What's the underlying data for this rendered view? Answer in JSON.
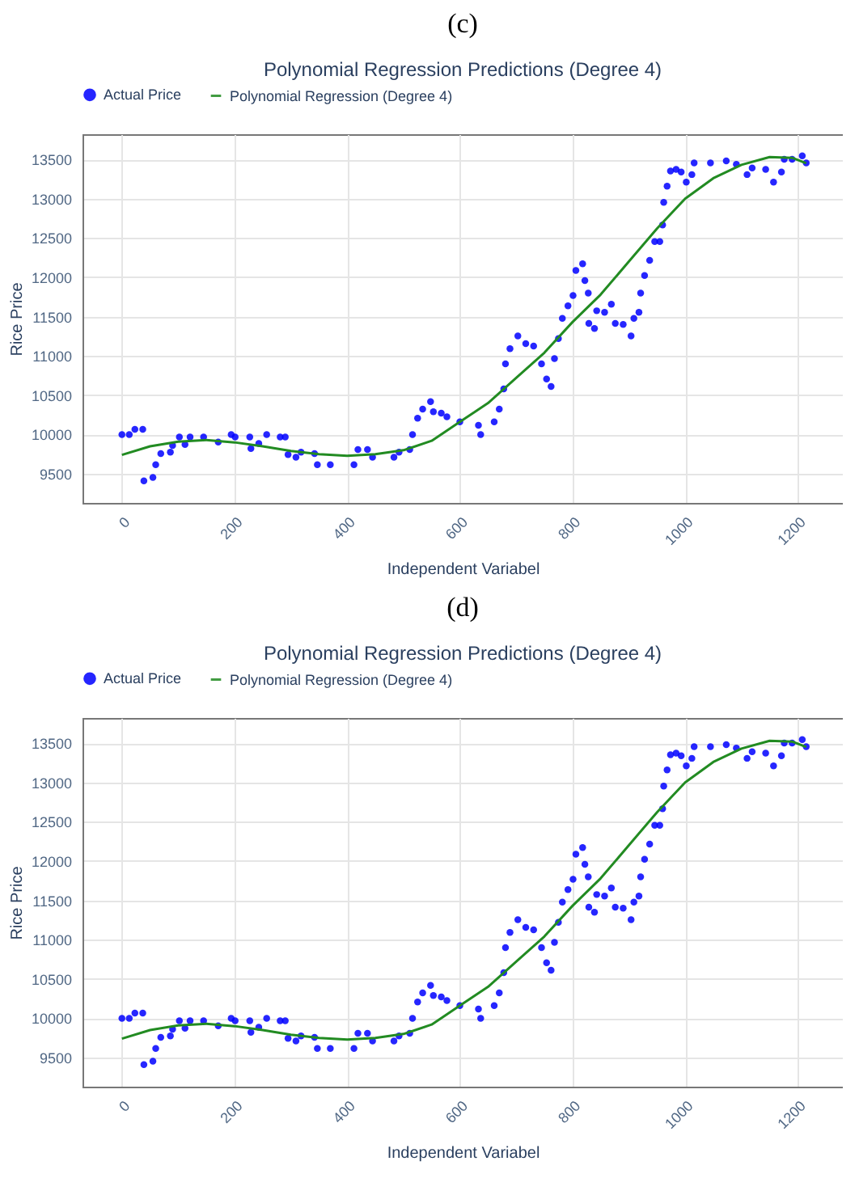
{
  "chart_data": [
    {
      "type": "scatter",
      "title": "Polynomial Regression Predictions (Degree 4)",
      "xlabel": "Independent Variabel",
      "ylabel": "Rice Price",
      "annotations": [
        "(c)"
      ],
      "xlim": [
        -70,
        1280
      ],
      "ylim": [
        9130,
        13820
      ],
      "xticks": [
        0,
        200,
        400,
        600,
        800,
        1000,
        1200
      ],
      "yticks": [
        9500,
        10000,
        10500,
        11000,
        11500,
        12000,
        12500,
        13000,
        13500
      ],
      "grid": true,
      "legend": "top",
      "series": [
        {
          "name": "Actual Price",
          "type": "scatter",
          "marker": "circle",
          "color": "#0000ff",
          "x": [
            0,
            13,
            23,
            37,
            39,
            55,
            60,
            69,
            86,
            90,
            102,
            112,
            121,
            145,
            171,
            194,
            201,
            227,
            229,
            243,
            257,
            281,
            290,
            295,
            309,
            318,
            342,
            347,
            370,
            412,
            419,
            436,
            445,
            483,
            492,
            511,
            516,
            525,
            534,
            548,
            553,
            567,
            577,
            600,
            633,
            637,
            661,
            670,
            678,
            681,
            689,
            703,
            717,
            731,
            745,
            754,
            762,
            768,
            775,
            782,
            792,
            801,
            806,
            818,
            822,
            828,
            829,
            839,
            843,
            857,
            869,
            876,
            890,
            904,
            909,
            918,
            921,
            928,
            937,
            946,
            955,
            960,
            962,
            968,
            974,
            984,
            993,
            1002,
            1012,
            1016,
            1045,
            1073,
            1091,
            1110,
            1119,
            1143,
            1157,
            1171,
            1176,
            1190,
            1208,
            1215
          ],
          "values": [
            10000,
            10000,
            10066,
            10066,
            9410,
            9455,
            9616,
            9757,
            9776,
            9860,
            9969,
            9873,
            9969,
            9969,
            9905,
            10000,
            9969,
            9969,
            9821,
            9886,
            10000,
            9969,
            9969,
            9744,
            9712,
            9776,
            9757,
            9616,
            9616,
            9616,
            9808,
            9808,
            9712,
            9712,
            9776,
            9808,
            10000,
            10207,
            10322,
            10418,
            10290,
            10271,
            10226,
            10160,
            10117,
            10000,
            10160,
            10322,
            10579,
            10900,
            11093,
            11253,
            11157,
            11125,
            10900,
            10707,
            10611,
            10965,
            11221,
            11478,
            11638,
            11767,
            12088,
            12171,
            11959,
            11799,
            11414,
            11349,
            11574,
            11555,
            11657,
            11414,
            11400,
            11253,
            11478,
            11555,
            11799,
            12023,
            12216,
            12454,
            12454,
            12665,
            12954,
            13160,
            13352,
            13372,
            13340,
            13211,
            13307,
            13455,
            13455,
            13480,
            13436,
            13307,
            13390,
            13372,
            13211,
            13340,
            13500,
            13500,
            13545,
            13455
          ]
        },
        {
          "name": "Polynomial Regression (Degree 4)",
          "type": "line",
          "marker": "none",
          "color": "#228b22",
          "x": [
            0,
            50,
            100,
            150,
            200,
            250,
            300,
            350,
            400,
            450,
            500,
            550,
            600,
            650,
            700,
            750,
            800,
            850,
            900,
            950,
            1000,
            1050,
            1100,
            1150,
            1190,
            1215
          ],
          "values": [
            9740,
            9850,
            9910,
            9930,
            9900,
            9850,
            9790,
            9750,
            9730,
            9750,
            9800,
            9920,
            10160,
            10400,
            10720,
            11040,
            11430,
            11780,
            12200,
            12620,
            13000,
            13260,
            13430,
            13530,
            13520,
            13450
          ]
        }
      ]
    },
    {
      "type": "scatter",
      "title": "Polynomial Regression Predictions (Degree 4)",
      "xlabel": "Independent Variabel",
      "ylabel": "Rice Price",
      "annotations": [
        "(d)"
      ],
      "xlim": [
        -70,
        1280
      ],
      "ylim": [
        9130,
        13820
      ],
      "xticks": [
        0,
        200,
        400,
        600,
        800,
        1000,
        1200
      ],
      "yticks": [
        9500,
        10000,
        10500,
        11000,
        11500,
        12000,
        12500,
        13000,
        13500
      ],
      "grid": true,
      "legend": "top",
      "series": [
        {
          "name": "Actual Price",
          "type": "scatter",
          "marker": "circle",
          "color": "#0000ff",
          "x": [
            0,
            13,
            23,
            37,
            39,
            55,
            60,
            69,
            86,
            90,
            102,
            112,
            121,
            145,
            171,
            194,
            201,
            227,
            229,
            243,
            257,
            281,
            290,
            295,
            309,
            318,
            342,
            347,
            370,
            412,
            419,
            436,
            445,
            483,
            492,
            511,
            516,
            525,
            534,
            548,
            553,
            567,
            577,
            600,
            633,
            637,
            661,
            670,
            678,
            681,
            689,
            703,
            717,
            731,
            745,
            754,
            762,
            768,
            775,
            782,
            792,
            801,
            806,
            818,
            822,
            828,
            829,
            839,
            843,
            857,
            869,
            876,
            890,
            904,
            909,
            918,
            921,
            928,
            937,
            946,
            955,
            960,
            962,
            968,
            974,
            984,
            993,
            1002,
            1012,
            1016,
            1045,
            1073,
            1091,
            1110,
            1119,
            1143,
            1157,
            1171,
            1176,
            1190,
            1208,
            1215
          ],
          "values": [
            10000,
            10000,
            10066,
            10066,
            9410,
            9455,
            9616,
            9757,
            9776,
            9860,
            9969,
            9873,
            9969,
            9969,
            9905,
            10000,
            9969,
            9969,
            9821,
            9886,
            10000,
            9969,
            9969,
            9744,
            9712,
            9776,
            9757,
            9616,
            9616,
            9616,
            9808,
            9808,
            9712,
            9712,
            9776,
            9808,
            10000,
            10207,
            10322,
            10418,
            10290,
            10271,
            10226,
            10160,
            10117,
            10000,
            10160,
            10322,
            10579,
            10900,
            11093,
            11253,
            11157,
            11125,
            10900,
            10707,
            10611,
            10965,
            11221,
            11478,
            11638,
            11767,
            12088,
            12171,
            11959,
            11799,
            11414,
            11349,
            11574,
            11555,
            11657,
            11414,
            11400,
            11253,
            11478,
            11555,
            11799,
            12023,
            12216,
            12454,
            12454,
            12665,
            12954,
            13160,
            13352,
            13372,
            13340,
            13211,
            13307,
            13455,
            13455,
            13480,
            13436,
            13307,
            13390,
            13372,
            13211,
            13340,
            13500,
            13500,
            13545,
            13455
          ]
        },
        {
          "name": "Polynomial Regression (Degree 4)",
          "type": "line",
          "marker": "none",
          "color": "#228b22",
          "x": [
            0,
            50,
            100,
            150,
            200,
            250,
            300,
            350,
            400,
            450,
            500,
            550,
            600,
            650,
            700,
            750,
            800,
            850,
            900,
            950,
            1000,
            1050,
            1100,
            1150,
            1190,
            1215
          ],
          "values": [
            9740,
            9850,
            9910,
            9930,
            9900,
            9850,
            9790,
            9750,
            9730,
            9750,
            9800,
            9920,
            10160,
            10400,
            10720,
            11040,
            11430,
            11780,
            12200,
            12620,
            13000,
            13260,
            13430,
            13530,
            13520,
            13450
          ]
        }
      ]
    }
  ]
}
